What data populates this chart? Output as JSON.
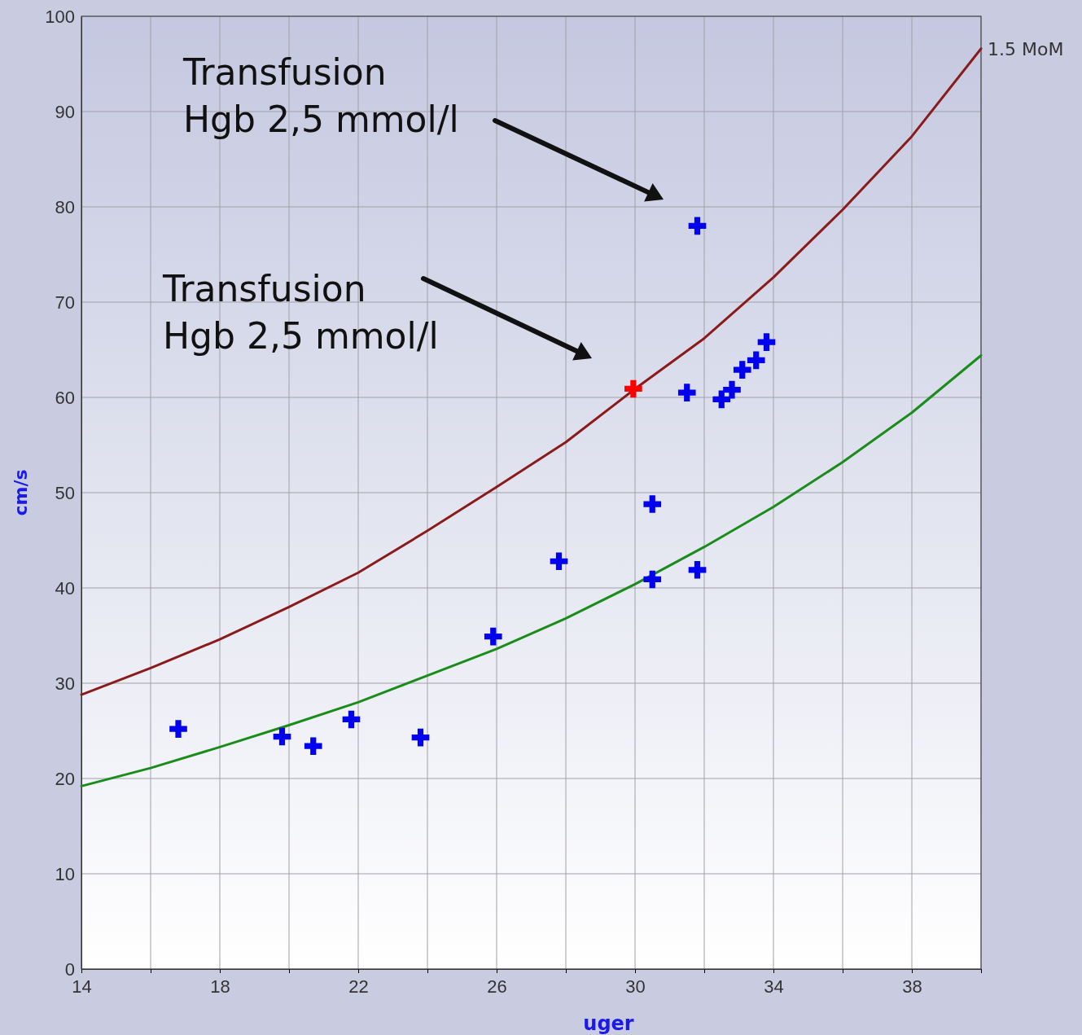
{
  "chart_data": {
    "type": "scatter",
    "xlabel": "uger",
    "ylabel": "cm/s",
    "xlim": [
      14,
      40
    ],
    "ylim": [
      0,
      100
    ],
    "xticks": [
      14,
      {
        "value": 16,
        "label": null
      },
      18,
      {
        "value": 20,
        "label": null
      },
      22,
      {
        "value": 24,
        "label": null
      },
      26,
      {
        "value": 28,
        "label": null
      },
      30,
      {
        "value": 32,
        "label": null
      },
      34,
      {
        "value": 36,
        "label": null
      },
      38,
      {
        "value": 40,
        "label": null
      }
    ],
    "yticks": [
      0,
      10,
      20,
      30,
      40,
      50,
      60,
      70,
      80,
      90,
      100
    ],
    "grid": true,
    "series": [
      {
        "name": "1.5 MoM",
        "type": "line",
        "color": "#8b1a1a",
        "x": [
          14,
          16,
          18,
          20,
          22,
          24,
          26,
          28,
          30,
          32,
          34,
          36,
          38,
          40
        ],
        "values": [
          28.8,
          31.6,
          34.6,
          38.0,
          41.6,
          46.0,
          50.6,
          55.3,
          60.9,
          66.2,
          72.6,
          79.7,
          87.4,
          96.6
        ]
      },
      {
        "type": "line",
        "color": "#1a8c1a",
        "x": [
          14,
          16,
          18,
          20,
          22,
          24,
          26,
          28,
          30,
          32,
          34,
          36,
          38,
          40
        ],
        "values": [
          19.2,
          21.1,
          23.3,
          25.6,
          28.0,
          30.8,
          33.6,
          36.8,
          40.4,
          44.3,
          48.5,
          53.2,
          58.4,
          64.4
        ]
      },
      {
        "marker": "cross",
        "color": "#0000ee",
        "x": [
          16.8,
          19.8,
          20.7,
          21.8,
          23.8,
          25.9,
          27.8,
          30.5,
          30.5,
          31.8,
          31.5,
          31.8,
          32.5,
          32.8,
          33.1,
          33.5,
          33.8
        ],
        "values": [
          25.2,
          24.4,
          23.4,
          26.2,
          24.3,
          34.9,
          42.8,
          48.8,
          40.9,
          78.0,
          60.5,
          41.9,
          59.8,
          60.8,
          62.9,
          63.9,
          65.8
        ]
      },
      {
        "marker": "cross",
        "color": "#ff0000",
        "x": [
          29.95
        ],
        "values": [
          60.9
        ]
      }
    ],
    "annotations": [
      "Transfusion\nHgb 2,5 mmol/l",
      "Transfusion\nHgb 2,5 mmol/l"
    ]
  }
}
